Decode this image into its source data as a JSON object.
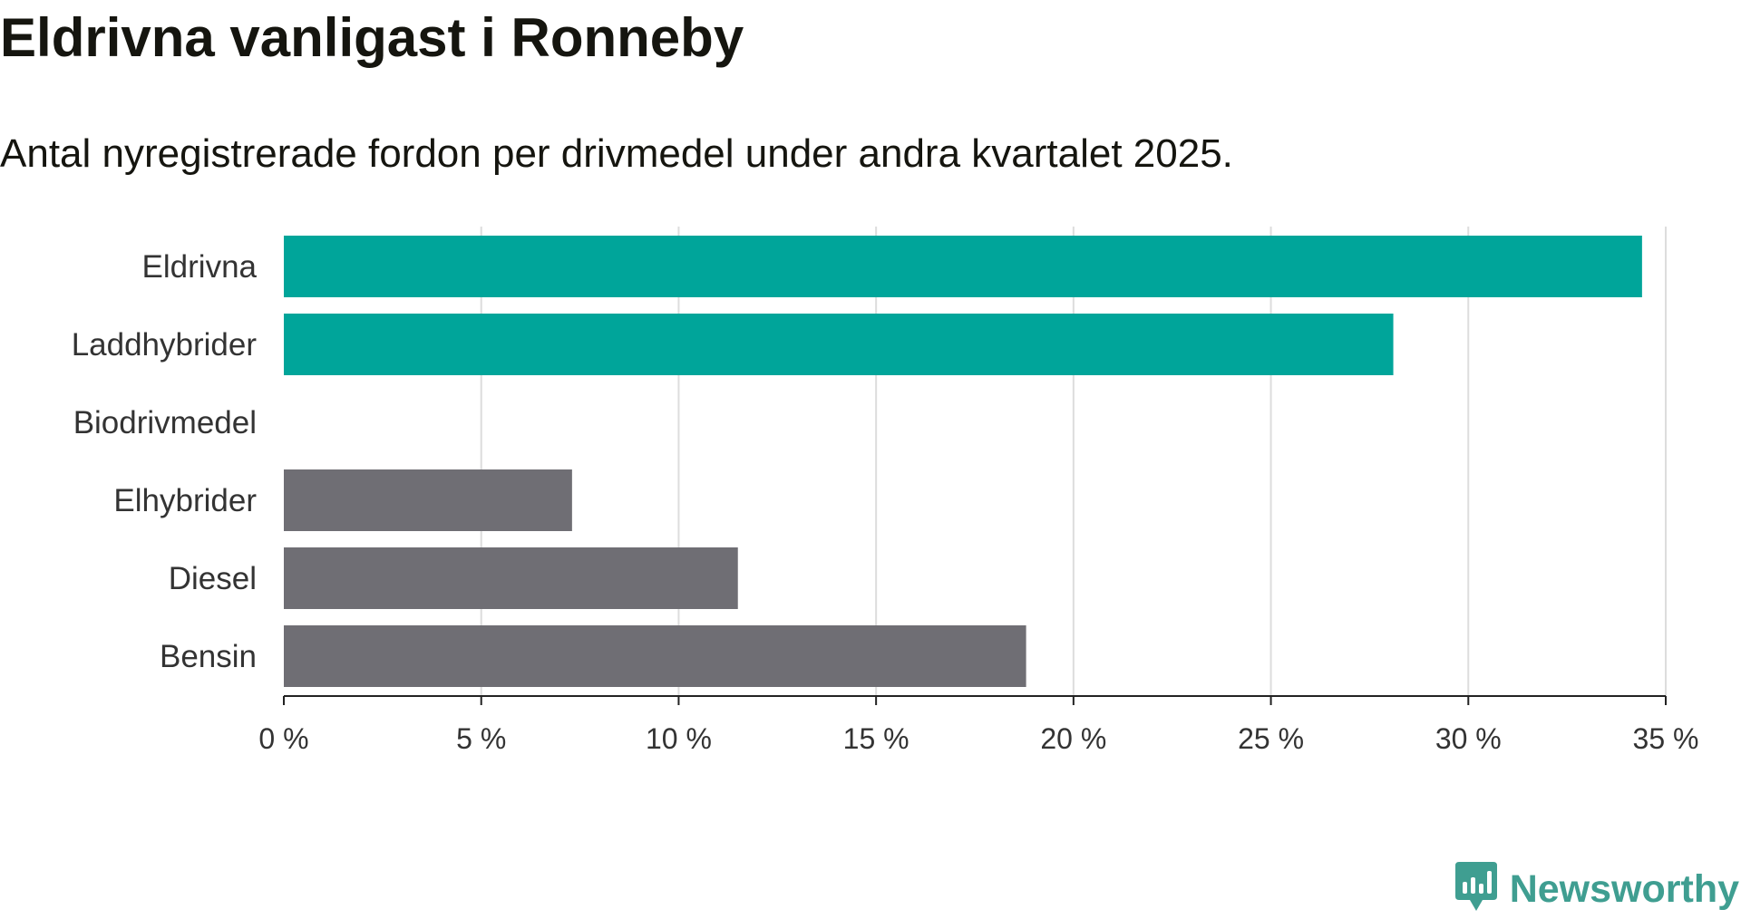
{
  "title": "Eldrivna vanligast i Ronneby",
  "subtitle": "Antal nyregistrerade fordon per drivmedel under andra kvartalet 2025.",
  "brand": {
    "name": "Newsworthy",
    "icon": "newsworthy-logo-icon",
    "color": "#3f9e91"
  },
  "colors": {
    "highlight": "#00a59a",
    "other": "#6f6e74",
    "grid": "#dddddd",
    "axis": "#222222"
  },
  "chart_data": {
    "type": "bar",
    "orientation": "horizontal",
    "title": "Eldrivna vanligast i Ronneby",
    "subtitle": "Antal nyregistrerade fordon per drivmedel under andra kvartalet 2025.",
    "categories": [
      "Eldrivna",
      "Laddhybrider",
      "Biodrivmedel",
      "Elhybrider",
      "Diesel",
      "Bensin"
    ],
    "values": [
      34.4,
      28.1,
      0,
      7.3,
      11.5,
      18.8
    ],
    "unit": "%",
    "highlighted": [
      true,
      true,
      false,
      false,
      false,
      false
    ],
    "xlim": [
      0,
      35
    ],
    "ticks": [
      0,
      5,
      10,
      15,
      20,
      25,
      30,
      35
    ],
    "tick_labels": [
      "0 %",
      "5 %",
      "10 %",
      "15 %",
      "20 %",
      "25 %",
      "30 %",
      "35 %"
    ],
    "xlabel": "",
    "ylabel": "",
    "grid": "vertical",
    "legend": "none"
  }
}
